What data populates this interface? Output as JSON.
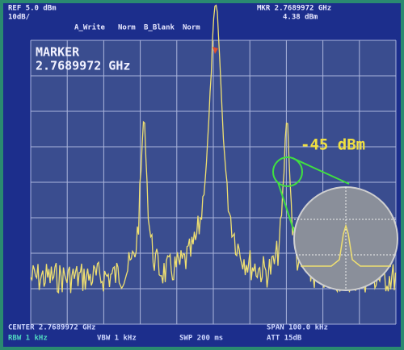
{
  "header": {
    "ref": "REF 5.0 dBm",
    "scale": "10dB/",
    "trace_a": "A_Write",
    "trace_a_mode": "Norm",
    "trace_b": "B_Blank",
    "trace_b_mode": "Norm",
    "marker_freq": "MKR 2.7689972 GHz",
    "marker_level": "4.38 dBm"
  },
  "marker_box": {
    "title": "MARKER",
    "freq": "2.7689972 GHz"
  },
  "annotation": "-45 dBm",
  "footer": {
    "center": "CENTER 2.7689972 GHz",
    "span": "SPAN 100.0 kHz",
    "rbw": "RBW 1 kHz",
    "vbw": "VBW 1 kHz",
    "sweep": "SWP 200 ms",
    "att": "ATT 15dB"
  }
}
